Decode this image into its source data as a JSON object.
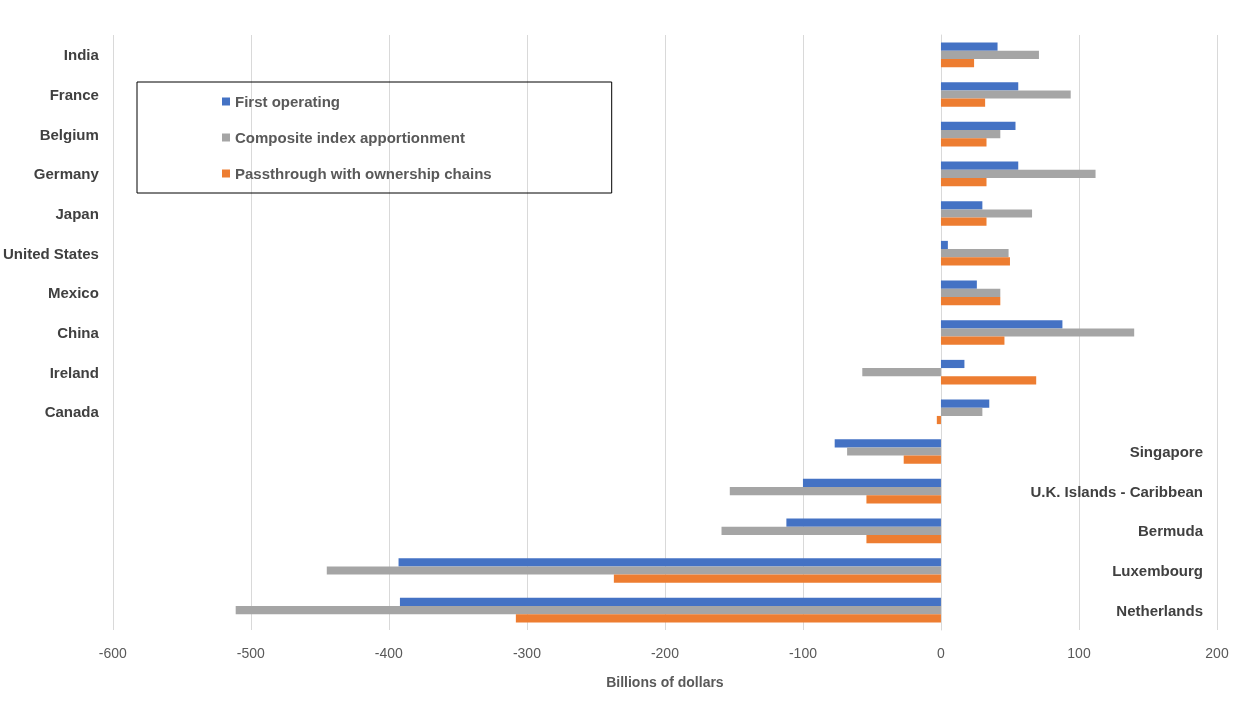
{
  "chart_data": {
    "type": "bar",
    "orientation": "horizontal",
    "xlabel": "Billions of dollars",
    "categories": [
      "India",
      "France",
      "Belgium",
      "Germany",
      "Japan",
      "United States",
      "Mexico",
      "China",
      "Ireland",
      "Canada",
      "Singapore",
      "U.K. Islands - Caribbean",
      "Bermuda",
      "Luxembourg",
      "Netherlands"
    ],
    "series": [
      {
        "name": "First operating",
        "color": "#4472c4",
        "values": [
          41,
          56,
          54,
          56,
          30,
          5,
          26,
          88,
          17,
          35,
          -77,
          -100,
          -112,
          -393,
          -392
        ]
      },
      {
        "name": "Composite index apportionment",
        "color": "#a5a5a5",
        "values": [
          71,
          94,
          43,
          112,
          66,
          49,
          43,
          140,
          -57,
          30,
          -68,
          -153,
          -159,
          -445,
          -511
        ]
      },
      {
        "name": "Passthrough with ownership chains",
        "color": "#ed7d31",
        "values": [
          24,
          32,
          33,
          33,
          33,
          50,
          43,
          46,
          69,
          -3,
          -27,
          -54,
          -54,
          -237,
          -308
        ]
      }
    ],
    "xlim": [
      -600,
      200
    ],
    "xticks": [
      -600,
      -500,
      -400,
      -300,
      -200,
      -100,
      0,
      100,
      200
    ],
    "grid": "x",
    "legend": "top left"
  }
}
